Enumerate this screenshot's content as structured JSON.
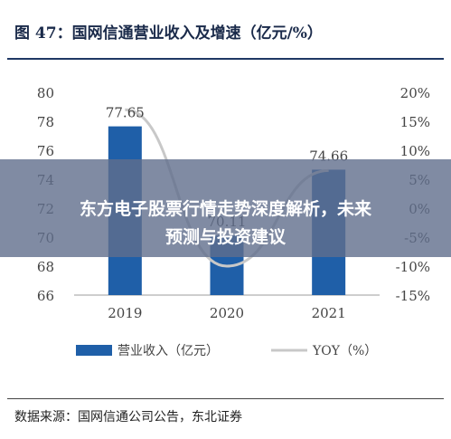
{
  "header": {
    "title": "图 47：国网信通营业收入及增速（亿元/%）"
  },
  "banner": {
    "line1": "东方电子股票行情走势深度解析，未来",
    "line2": "预测与投资建议"
  },
  "footer": {
    "source": "数据来源：国网信通公司公告，东北证券"
  },
  "colors": {
    "bar": "#1f5fa8",
    "line": "#c8c8c8",
    "rule": "#1f3864"
  },
  "chart_data": {
    "type": "bar",
    "categories": [
      "2019",
      "2020",
      "2021"
    ],
    "series": [
      {
        "name": "营业收入（亿元）",
        "type": "bar",
        "axis": "left",
        "values": [
          77.65,
          70.11,
          74.66
        ]
      },
      {
        "name": "YOY（%）",
        "type": "line",
        "axis": "right",
        "values": [
          17.0,
          -10.0,
          6.5
        ]
      }
    ],
    "data_labels": [
      "77.65",
      "70.11",
      "74.66"
    ],
    "ylim_left": [
      66,
      80
    ],
    "yticks_left": [
      "80",
      "78",
      "76",
      "74",
      "72",
      "70",
      "68",
      "66"
    ],
    "ylim_right": [
      -15,
      20
    ],
    "yticks_right": [
      "20%",
      "15%",
      "10%",
      "5%",
      "0%",
      "-5%",
      "-10%",
      "-15%"
    ],
    "grid": false,
    "legend": "bottom"
  }
}
